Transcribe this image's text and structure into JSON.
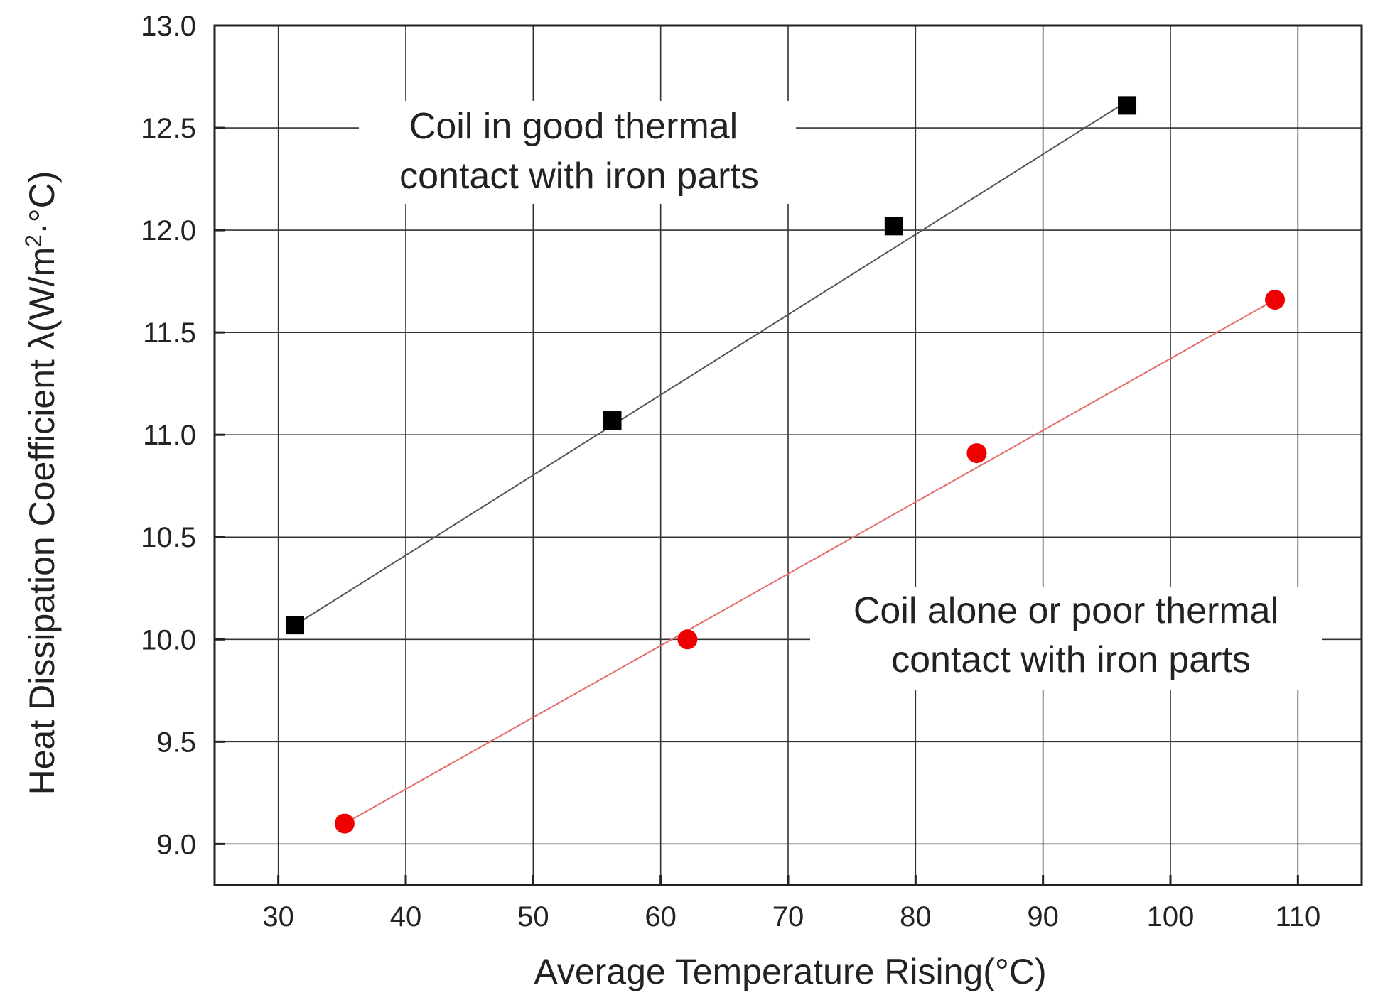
{
  "chart_data": {
    "type": "scatter",
    "title": "",
    "xlabel": "Average Temperature Rising(°C)",
    "ylabel_main": "Heat Dissipation Coefficient λ(W/m",
    "ylabel_sup": "2",
    "ylabel_tail": "·°C)",
    "xlim": [
      25,
      115
    ],
    "ylim": [
      8.8,
      13.0
    ],
    "x_ticks": [
      30,
      40,
      50,
      60,
      70,
      80,
      90,
      100,
      110
    ],
    "x_tick_labels": [
      "30",
      "40",
      "50",
      "60",
      "70",
      "80",
      "90",
      "100",
      "110"
    ],
    "y_ticks": [
      9.0,
      9.5,
      10.0,
      10.5,
      11.0,
      11.5,
      12.0,
      12.5,
      13.0
    ],
    "y_tick_labels": [
      "9.0",
      "9.5",
      "10.0",
      "10.5",
      "11.0",
      "11.5",
      "12.0",
      "12.5",
      "13.0"
    ],
    "grid": true,
    "series": [
      {
        "name": "Coil in good thermal contact with iron parts",
        "marker": "square",
        "color": "#000000",
        "line_color": "#555555",
        "points": [
          [
            31.3,
            10.07
          ],
          [
            56.2,
            11.07
          ],
          [
            78.3,
            12.02
          ],
          [
            96.6,
            12.61
          ]
        ],
        "fit": [
          [
            31.3,
            10.07
          ],
          [
            96.6,
            12.63
          ]
        ]
      },
      {
        "name": "Coil alone or poor thermal contact with iron parts",
        "marker": "circle",
        "color": "#ee0000",
        "line_color": "#e56b6b",
        "points": [
          [
            35.2,
            9.1
          ],
          [
            62.1,
            10.0
          ],
          [
            84.8,
            10.91
          ],
          [
            108.2,
            11.66
          ]
        ],
        "fit": [
          [
            35.2,
            9.1
          ],
          [
            108.2,
            11.66
          ]
        ]
      }
    ],
    "annotations": [
      {
        "id": "good",
        "lines": [
          "Coil in good thermal",
          "contact with iron parts"
        ]
      },
      {
        "id": "poor",
        "lines": [
          "Coil alone or poor thermal",
          "contact with iron parts"
        ]
      }
    ]
  }
}
